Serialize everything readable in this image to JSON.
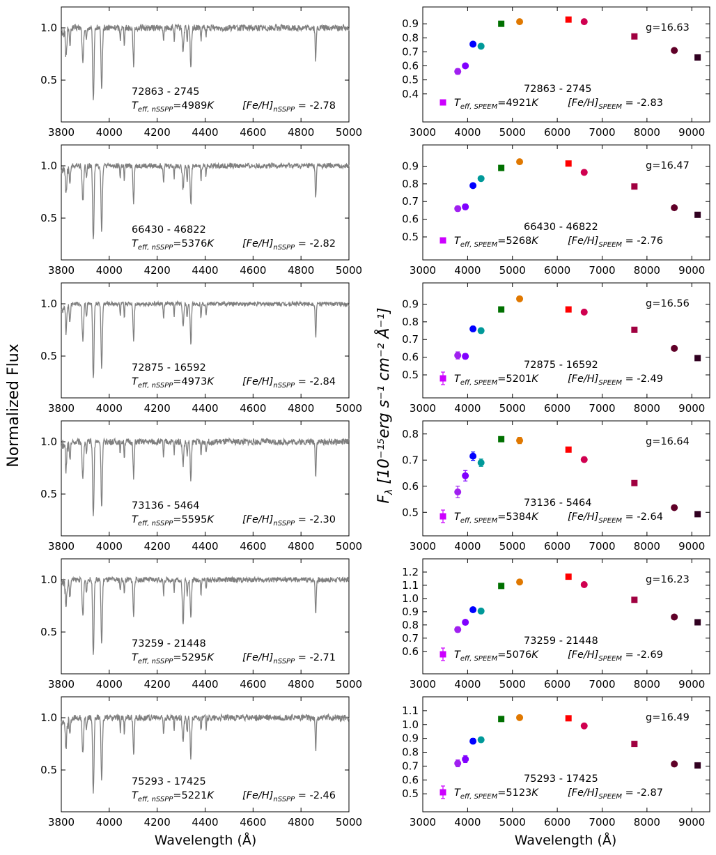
{
  "figure": {
    "ylabel_left": "Normalized Flux",
    "ylabel_right_main": "F",
    "ylabel_right_sub": "λ",
    "ylabel_right_rest": " [10⁻¹⁵erg s⁻¹ cm⁻² Å⁻¹]",
    "xlabel": "Wavelength (Å)"
  },
  "chart_data": [
    {
      "type": "line",
      "panel": "spectrum",
      "star": "72863 - 2745",
      "teff_nsspp": 4989,
      "feh_nsspp": "-2.78",
      "x": [
        3800,
        5000
      ],
      "ylim": [
        0.1,
        1.2
      ],
      "yticks": [
        0.5,
        1.0
      ],
      "xticks": [
        3800,
        4000,
        4200,
        4400,
        4600,
        4800,
        5000
      ],
      "series": [
        {
          "values_note_free": true,
          "color": "#7f7f7f"
        }
      ]
    },
    {
      "type": "scatter",
      "panel": "photometry",
      "star": "72863 - 2745",
      "teff_speem": 4921,
      "feh_speem": "-2.83",
      "g": "g=16.63",
      "xlim": [
        3000,
        9400
      ],
      "ylim": [
        0.2,
        1.02
      ],
      "yticks": [
        0.4,
        0.5,
        0.6,
        0.7,
        0.8,
        0.9
      ],
      "xticks": [
        3000,
        4000,
        5000,
        6000,
        7000,
        8000,
        9000
      ],
      "values": [
        0.56,
        0.6,
        0.755,
        0.74,
        0.9,
        0.915,
        0.93,
        0.915,
        0.81,
        0.71,
        0.66
      ],
      "errors": [
        0.02,
        0.015,
        0.012,
        0.01,
        0.0,
        0.0,
        0.0,
        0.0,
        0.0,
        0.0,
        0.0
      ]
    },
    {
      "type": "line",
      "panel": "spectrum",
      "star": "66430 - 46822",
      "teff_nsspp": 5376,
      "feh_nsspp": "-2.82",
      "x": [
        3800,
        5000
      ],
      "ylim": [
        0.1,
        1.2
      ],
      "yticks": [
        0.5,
        1.0
      ],
      "xticks": [
        3800,
        4000,
        4200,
        4400,
        4600,
        4800,
        5000
      ]
    },
    {
      "type": "scatter",
      "panel": "photometry",
      "star": "66430 - 46822",
      "teff_speem": 5268,
      "feh_speem": "-2.76",
      "g": "g=16.47",
      "xlim": [
        3000,
        9400
      ],
      "ylim": [
        0.37,
        1.02
      ],
      "yticks": [
        0.5,
        0.6,
        0.7,
        0.8,
        0.9
      ],
      "xticks": [
        3000,
        4000,
        5000,
        6000,
        7000,
        8000,
        9000
      ],
      "values": [
        0.66,
        0.67,
        0.79,
        0.83,
        0.89,
        0.925,
        0.915,
        0.865,
        0.785,
        0.665,
        0.625
      ],
      "errors": [
        0.015,
        0.015,
        0.01,
        0.0,
        0.0,
        0.0,
        0.0,
        0.0,
        0.0,
        0.0,
        0.0
      ]
    },
    {
      "type": "line",
      "panel": "spectrum",
      "star": "72875 - 16592",
      "teff_nsspp": 4973,
      "feh_nsspp": "-2.84",
      "x": [
        3800,
        5000
      ],
      "ylim": [
        0.1,
        1.2
      ],
      "yticks": [
        0.5,
        1.0
      ],
      "xticks": [
        3800,
        4000,
        4200,
        4400,
        4600,
        4800,
        5000
      ]
    },
    {
      "type": "scatter",
      "panel": "photometry",
      "star": "72875 - 16592",
      "teff_speem": 5201,
      "feh_speem": "-2.49",
      "g": "g=16.56",
      "xlim": [
        3000,
        9400
      ],
      "ylim": [
        0.37,
        1.02
      ],
      "yticks": [
        0.5,
        0.6,
        0.7,
        0.8,
        0.9
      ],
      "xticks": [
        3000,
        4000,
        5000,
        6000,
        7000,
        8000,
        9000
      ],
      "values": [
        0.61,
        0.605,
        0.76,
        0.75,
        0.87,
        0.93,
        0.87,
        0.855,
        0.755,
        0.65,
        0.595
      ],
      "errors": [
        0.02,
        0.015,
        0.015,
        0.012,
        0.0,
        0.0,
        0.0,
        0.0,
        0.0,
        0.0,
        0.0
      ]
    },
    {
      "type": "line",
      "panel": "spectrum",
      "star": "73136 - 5464",
      "teff_nsspp": 5595,
      "feh_nsspp": "-2.30",
      "x": [
        3800,
        5000
      ],
      "ylim": [
        0.1,
        1.2
      ],
      "yticks": [
        0.5,
        1.0
      ],
      "xticks": [
        3800,
        4000,
        4200,
        4400,
        4600,
        4800,
        5000
      ]
    },
    {
      "type": "scatter",
      "panel": "photometry",
      "star": "73136 - 5464",
      "teff_speem": 5384,
      "feh_speem": "-2.64",
      "g": "g=16.64",
      "xlim": [
        3000,
        9400
      ],
      "ylim": [
        0.41,
        0.85
      ],
      "yticks": [
        0.5,
        0.6,
        0.7,
        0.8
      ],
      "xticks": [
        3000,
        4000,
        5000,
        6000,
        7000,
        8000,
        9000
      ],
      "values": [
        0.578,
        0.64,
        0.715,
        0.69,
        0.78,
        0.775,
        0.74,
        0.702,
        0.612,
        0.518,
        0.493
      ],
      "errors": [
        0.022,
        0.02,
        0.016,
        0.014,
        0.0,
        0.012,
        0.0,
        0.0,
        0.0,
        0.0,
        0.0
      ]
    },
    {
      "type": "line",
      "panel": "spectrum",
      "star": "73259 - 21448",
      "teff_nsspp": 5295,
      "feh_nsspp": "-2.71",
      "x": [
        3800,
        5000
      ],
      "ylim": [
        0.1,
        1.2
      ],
      "yticks": [
        0.5,
        1.0
      ],
      "xticks": [
        3800,
        4000,
        4200,
        4400,
        4600,
        4800,
        5000
      ]
    },
    {
      "type": "scatter",
      "panel": "photometry",
      "star": "73259 - 21448",
      "teff_speem": 5076,
      "feh_speem": "-2.69",
      "g": "g=16.23",
      "xlim": [
        3000,
        9400
      ],
      "ylim": [
        0.43,
        1.3
      ],
      "yticks": [
        0.6,
        0.7,
        0.8,
        0.9,
        1.0,
        1.1,
        1.2
      ],
      "xticks": [
        3000,
        4000,
        5000,
        6000,
        7000,
        8000,
        9000
      ],
      "values": [
        0.765,
        0.82,
        0.915,
        0.905,
        1.095,
        1.125,
        1.165,
        1.105,
        0.99,
        0.86,
        0.82
      ],
      "errors": [
        0.02,
        0.015,
        0.015,
        0.0,
        0.0,
        0.0,
        0.0,
        0.0,
        0.0,
        0.0,
        0.0
      ]
    },
    {
      "type": "line",
      "panel": "spectrum",
      "star": "75293 - 17425",
      "teff_nsspp": 5221,
      "feh_nsspp": "-2.46",
      "x": [
        3800,
        5000
      ],
      "ylim": [
        0.1,
        1.2
      ],
      "yticks": [
        0.5,
        1.0
      ],
      "xticks": [
        3800,
        4000,
        4200,
        4400,
        4600,
        4800,
        5000
      ]
    },
    {
      "type": "scatter",
      "panel": "photometry",
      "star": "75293 - 17425",
      "teff_speem": 5123,
      "feh_speem": "-2.87",
      "g": "g=16.49",
      "xlim": [
        3000,
        9400
      ],
      "ylim": [
        0.37,
        1.2
      ],
      "yticks": [
        0.5,
        0.6,
        0.7,
        0.8,
        0.9,
        1.0,
        1.1
      ],
      "xticks": [
        3000,
        4000,
        5000,
        6000,
        7000,
        8000,
        9000
      ],
      "values": [
        0.72,
        0.75,
        0.88,
        0.89,
        1.04,
        1.05,
        1.045,
        0.99,
        0.86,
        0.715,
        0.705
      ],
      "errors": [
        0.025,
        0.025,
        0.02,
        0.012,
        0.0,
        0.0,
        0.0,
        0.0,
        0.0,
        0.0,
        0.0
      ]
    }
  ],
  "filters": {
    "wavelengths": [
      3780,
      3950,
      4120,
      4300,
      4750,
      5160,
      6250,
      6600,
      7720,
      8610,
      9130
    ],
    "markers": [
      "circle",
      "circle",
      "circle",
      "circle",
      "square",
      "circle",
      "square",
      "circle",
      "square",
      "circle",
      "square"
    ],
    "colors": [
      "#a020f0",
      "#8000ff",
      "#0000ff",
      "#009999",
      "#007000",
      "#e07800",
      "#ff0000",
      "#d00050",
      "#a00040",
      "#600028",
      "#300020"
    ]
  }
}
